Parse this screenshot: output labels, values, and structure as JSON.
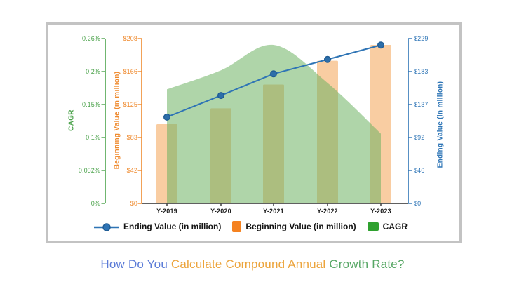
{
  "page_title": {
    "segments": [
      {
        "text": "How Do You ",
        "color": "#5b7bd7"
      },
      {
        "text": "Calculate Compound Annual ",
        "color": "#eca43c"
      },
      {
        "text": "Growth Rate?",
        "color": "#57a765"
      }
    ]
  },
  "chart_data": {
    "type": "combo: bar + area + line",
    "categories": [
      "Y-2019",
      "Y-2020",
      "Y-2021",
      "Y-2022",
      "Y-2023"
    ],
    "series": [
      {
        "name": "Beginning Value (in million)",
        "type": "bar",
        "axis": "beginning",
        "values": [
          100,
          120,
          150,
          180,
          200
        ],
        "color": "#f9cda2"
      },
      {
        "name": "CAGR",
        "type": "area",
        "axis": "cagr",
        "values": [
          0.18,
          0.21,
          0.25,
          0.19,
          0.11
        ],
        "color": "#6db363",
        "opacity": 0.55
      },
      {
        "name": "Ending Value (in million)",
        "type": "line",
        "axis": "ending",
        "values": [
          120,
          150,
          180,
          200,
          220
        ],
        "color": "#2e74b5",
        "marker_fill": "#2d6ea9",
        "marker_stroke": "#1f5c94"
      }
    ],
    "axes": {
      "cagr": {
        "title": "CAGR",
        "color": "#4ca34c",
        "range": [
          0,
          0.26
        ],
        "ticks": [
          "0.26%",
          "0.2%",
          "0.15%",
          "0.1%",
          "0.052%",
          "0%"
        ]
      },
      "beginning": {
        "title": "Beginning Value (in million)",
        "color": "#ef8a2e",
        "range": [
          0,
          208
        ],
        "ticks": [
          "$208",
          "$166",
          "$125",
          "$83",
          "$42",
          "$0"
        ]
      },
      "ending": {
        "title": "Ending Value (in million)",
        "color": "#2e75b6",
        "range": [
          0,
          229
        ],
        "ticks": [
          "$229",
          "$183",
          "$137",
          "$92",
          "$46",
          "$0"
        ]
      },
      "x": {
        "color": "#4a4a4a",
        "ticks": [
          "Y-2019",
          "Y-2020",
          "Y-2021",
          "Y-2022",
          "Y-2023"
        ]
      }
    },
    "legend": [
      {
        "label": "Ending Value (in million)",
        "marker": "line-dot",
        "color": "#2e74b5"
      },
      {
        "label": "Beginning Value (in million)",
        "marker": "square",
        "color": "#f58220"
      },
      {
        "label": "CAGR",
        "marker": "square",
        "color": "#2fa12f"
      }
    ],
    "grid": false,
    "legend_position": "bottom"
  }
}
